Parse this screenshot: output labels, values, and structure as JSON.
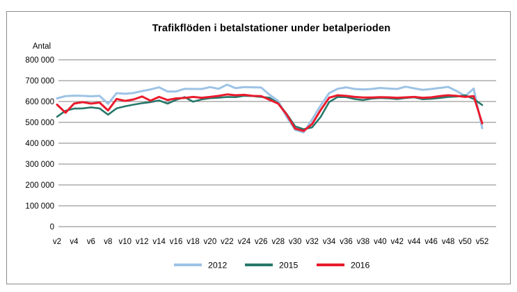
{
  "chart_data": {
    "type": "line",
    "title": "Trafikflöden i betalstationer under betalperioden",
    "ylabel": "Antal",
    "grid": "horizontal",
    "legend_position": "bottom",
    "ylim": [
      0,
      800000
    ],
    "y_ticks": [
      0,
      100000,
      200000,
      300000,
      400000,
      500000,
      600000,
      700000,
      800000
    ],
    "y_tick_labels": [
      "0",
      "100 000",
      "200 000",
      "300 000",
      "400 000",
      "500 000",
      "600 000",
      "700 000",
      "800 000"
    ],
    "weeks": [
      2,
      3,
      4,
      5,
      6,
      7,
      8,
      9,
      10,
      11,
      12,
      13,
      14,
      15,
      16,
      17,
      18,
      19,
      20,
      21,
      22,
      23,
      24,
      25,
      26,
      27,
      28,
      29,
      30,
      31,
      32,
      33,
      34,
      35,
      36,
      37,
      38,
      39,
      40,
      41,
      42,
      43,
      44,
      45,
      46,
      47,
      48,
      49,
      50,
      51,
      52
    ],
    "x_tick_weeks": [
      2,
      4,
      6,
      8,
      10,
      12,
      14,
      16,
      18,
      20,
      22,
      24,
      26,
      28,
      30,
      32,
      34,
      36,
      38,
      40,
      42,
      44,
      46,
      48,
      50,
      52
    ],
    "x_tick_labels": [
      "v2",
      "v4",
      "v6",
      "v8",
      "v10",
      "v12",
      "v14",
      "v16",
      "v18",
      "v20",
      "v22",
      "v24",
      "v26",
      "v28",
      "v30",
      "v32",
      "v34",
      "v36",
      "v38",
      "v40",
      "v42",
      "v44",
      "v46",
      "v48",
      "v50",
      "v52"
    ],
    "series": [
      {
        "name": "2012",
        "color": "#9DC3E6",
        "values": [
          615000,
          626000,
          628000,
          627000,
          625000,
          627000,
          589000,
          640000,
          637000,
          641000,
          650000,
          658000,
          668000,
          648000,
          648000,
          661000,
          660000,
          660000,
          669000,
          661000,
          681000,
          664000,
          669000,
          668000,
          667000,
          632000,
          603000,
          526000,
          464000,
          452000,
          514000,
          581000,
          640000,
          661000,
          668000,
          660000,
          658000,
          660000,
          665000,
          662000,
          660000,
          671000,
          663000,
          656000,
          660000,
          665000,
          670000,
          650000,
          626000,
          662000,
          472000
        ]
      },
      {
        "name": "2015",
        "color": "#27786B",
        "values": [
          527000,
          556000,
          566000,
          567000,
          572000,
          567000,
          537000,
          567000,
          577000,
          585000,
          592000,
          597000,
          605000,
          590000,
          608000,
          621000,
          599000,
          610000,
          616000,
          618000,
          622000,
          621000,
          627000,
          626000,
          622000,
          618000,
          592000,
          541000,
          481000,
          467000,
          476000,
          526000,
          597000,
          622000,
          621000,
          612000,
          607000,
          614000,
          617000,
          615000,
          612000,
          617000,
          620000,
          611000,
          613000,
          617000,
          622000,
          624000,
          630000,
          612000,
          583000
        ]
      },
      {
        "name": "2016",
        "color": "#EA1B2D",
        "values": [
          585000,
          546000,
          590000,
          597000,
          590000,
          595000,
          557000,
          612000,
          603000,
          610000,
          624000,
          604000,
          622000,
          607000,
          615000,
          617000,
          622000,
          618000,
          622000,
          627000,
          634000,
          630000,
          632000,
          627000,
          626000,
          608000,
          590000,
          538000,
          470000,
          459000,
          492000,
          559000,
          618000,
          630000,
          627000,
          622000,
          619000,
          619000,
          621000,
          620000,
          618000,
          620000,
          622000,
          618000,
          620000,
          626000,
          630000,
          627000,
          622000,
          626000,
          495000
        ]
      }
    ]
  }
}
